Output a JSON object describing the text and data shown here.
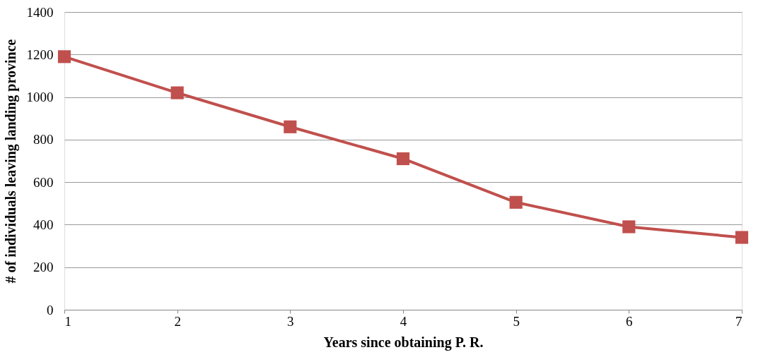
{
  "chart_data": {
    "type": "line",
    "xlabel": "Years since obtaining P. R.",
    "ylabel": "# of individuals leaving landing province",
    "x": [
      1,
      2,
      3,
      4,
      5,
      6,
      7
    ],
    "series": [
      {
        "color": "#c0504d",
        "values": [
          1190,
          1020,
          860,
          710,
          505,
          390,
          340
        ]
      }
    ],
    "xlim": [
      1,
      7
    ],
    "xticks": [
      1,
      2,
      3,
      4,
      5,
      6,
      7
    ],
    "ylim": [
      0,
      1400
    ],
    "yticks": [
      0,
      200,
      400,
      600,
      800,
      1000,
      1200,
      1400
    ],
    "grid": "y",
    "marker": "square",
    "line_style": "solid"
  }
}
